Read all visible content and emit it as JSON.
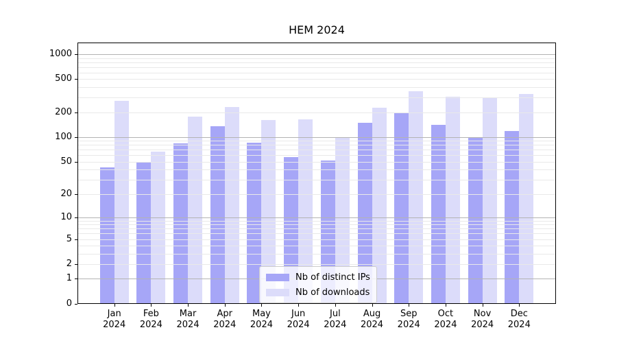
{
  "title": "HEM 2024",
  "chart_data": {
    "type": "bar",
    "title": "HEM 2024",
    "categories": [
      "Jan",
      "Feb",
      "Mar",
      "Apr",
      "May",
      "Jun",
      "Jul",
      "Aug",
      "Sep",
      "Oct",
      "Nov",
      "Dec"
    ],
    "year": "2024",
    "series": [
      {
        "name": "Nb of distinct IPs",
        "color": "#a6a6f7",
        "values": [
          43,
          50,
          84,
          135,
          85,
          57,
          52,
          148,
          193,
          140,
          97,
          119
        ]
      },
      {
        "name": "Nb of downloads",
        "color": "#dcdcfa",
        "values": [
          275,
          67,
          177,
          230,
          162,
          164,
          100,
          228,
          355,
          308,
          298,
          334
        ]
      }
    ],
    "y_ticks": [
      0,
      1,
      2,
      5,
      10,
      20,
      50,
      100,
      200,
      500,
      1000
    ],
    "y_scale": "log10(value+1)",
    "ylim": [
      0,
      1380
    ],
    "grid": {
      "on": true,
      "major_values": [
        1,
        10,
        100,
        1000
      ],
      "minor_mantissas": [
        2,
        3,
        4,
        5,
        6,
        7,
        8,
        9
      ],
      "major_color": "#b3b3b3",
      "minor_color": "#e9e9e9"
    },
    "legend_position": "lower center",
    "xlabel": "",
    "ylabel": ""
  },
  "colors": {
    "background": "#ffffff",
    "spine": "#000000",
    "text": "#000000",
    "series_dark": "#a6a6f7",
    "series_light": "#dcdcfa"
  }
}
